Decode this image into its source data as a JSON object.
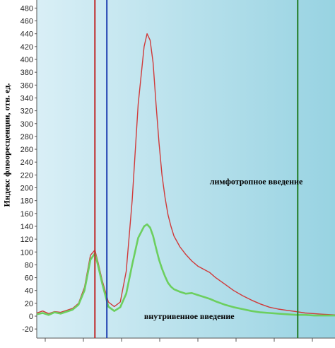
{
  "chart_data": {
    "type": "line",
    "ylabel": "Индекс флюоресценции, отн. ед.",
    "xlabel": "",
    "title": "",
    "ylim": [
      -30,
      485
    ],
    "xlim": [
      0,
      100
    ],
    "yticks": [
      480,
      460,
      440,
      420,
      400,
      380,
      360,
      340,
      320,
      300,
      280,
      260,
      240,
      220,
      200,
      180,
      160,
      140,
      120,
      100,
      80,
      60,
      40,
      20,
      0,
      -20
    ],
    "grid": false,
    "background_gradient": [
      "#d9eff6",
      "#98d3e2"
    ],
    "series": [
      {
        "color": "#d03a3a",
        "x": [
          0,
          2,
          4,
          6,
          8,
          10,
          12,
          14,
          16,
          18,
          19.5,
          20.5,
          22,
          24,
          26,
          28,
          30,
          32,
          34,
          36,
          37,
          38,
          39,
          40,
          41,
          42,
          43,
          44,
          45,
          46,
          48,
          50,
          52,
          54,
          56,
          58,
          60,
          63,
          66,
          69,
          72,
          75,
          78,
          81,
          84,
          87,
          90,
          93,
          96,
          100
        ],
        "y": [
          5,
          8,
          4,
          7,
          6,
          9,
          12,
          20,
          45,
          95,
          103,
          85,
          55,
          22,
          15,
          22,
          70,
          180,
          330,
          420,
          440,
          430,
          395,
          330,
          270,
          220,
          185,
          158,
          140,
          125,
          108,
          96,
          86,
          78,
          73,
          68,
          60,
          50,
          40,
          32,
          25,
          19,
          14,
          11,
          9,
          7,
          5,
          4,
          3,
          2
        ]
      },
      {
        "color": "#6ccf5f",
        "x": [
          0,
          2,
          4,
          6,
          8,
          10,
          12,
          14,
          16,
          18,
          19.5,
          20.5,
          22,
          24,
          26,
          28,
          30,
          32,
          34,
          36,
          37,
          38,
          39,
          40,
          41,
          42,
          43,
          44,
          45,
          46,
          48,
          50,
          52,
          54,
          56,
          58,
          60,
          63,
          66,
          69,
          72,
          75,
          78,
          81,
          84,
          87,
          90,
          93,
          96,
          100
        ],
        "y": [
          3,
          5,
          2,
          6,
          4,
          7,
          10,
          18,
          40,
          88,
          98,
          80,
          50,
          15,
          8,
          14,
          35,
          80,
          122,
          140,
          143,
          138,
          125,
          106,
          88,
          74,
          62,
          52,
          46,
          42,
          38,
          35,
          36,
          33,
          30,
          27,
          23,
          18,
          14,
          11,
          8,
          6,
          5,
          4,
          3,
          2,
          2,
          1,
          1,
          1
        ]
      }
    ],
    "vlines": [
      {
        "x": 19.5,
        "color": "#c02626"
      },
      {
        "x": 23.5,
        "color": "#1f3fb0"
      },
      {
        "x": 87.5,
        "color": "#1f7a22"
      }
    ],
    "annotations": [
      {
        "text": "лимфотропное введение",
        "x": 58,
        "y": 210
      },
      {
        "text": "внутривенное введение",
        "x": 36,
        "y": 0
      }
    ]
  }
}
